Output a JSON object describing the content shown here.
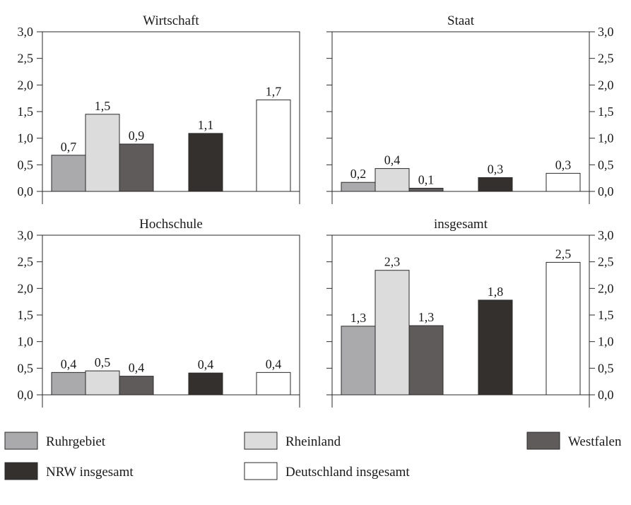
{
  "chart_data": {
    "type": "bar",
    "categories": [
      "Ruhrgebiet",
      "Rheinland",
      "Westfalen",
      "NRW insgesamt",
      "Deutschland insgesamt"
    ],
    "colors": {
      "Ruhrgebiet": "#aaaaac",
      "Rheinland": "#dcdcdc",
      "Westfalen": "#5f5b5b",
      "NRW insgesamt": "#33302e",
      "Deutschland insgesamt": "#ffffff"
    },
    "ylim": [
      0,
      3.0
    ],
    "yticks": [
      "0,0",
      "0,5",
      "1,0",
      "1,5",
      "2,0",
      "2,5",
      "3,0"
    ],
    "grid": false,
    "legend": {
      "placement": "bottom",
      "items": [
        "Ruhrgebiet",
        "Rheinland",
        "Westfalen",
        "NRW insgesamt",
        "Deutschland insgesamt"
      ]
    },
    "panels": [
      {
        "title": "Wirtschaft",
        "values": [
          0.68,
          1.45,
          0.89,
          1.09,
          1.72
        ],
        "labels": [
          "0,7",
          "1,5",
          "0,9",
          "1,1",
          "1,7"
        ]
      },
      {
        "title": "Staat",
        "values": [
          0.17,
          0.43,
          0.06,
          0.26,
          0.34
        ],
        "labels": [
          "0,2",
          "0,4",
          "0,1",
          "0,3",
          "0,3"
        ]
      },
      {
        "title": "Hochschule",
        "values": [
          0.42,
          0.45,
          0.35,
          0.41,
          0.42
        ],
        "labels": [
          "0,4",
          "0,5",
          "0,4",
          "0,4",
          "0,4"
        ]
      },
      {
        "title": "insgesamt",
        "values": [
          1.29,
          2.34,
          1.3,
          1.78,
          2.49
        ],
        "labels": [
          "1,3",
          "2,3",
          "1,3",
          "1,8",
          "2,5"
        ]
      }
    ]
  }
}
